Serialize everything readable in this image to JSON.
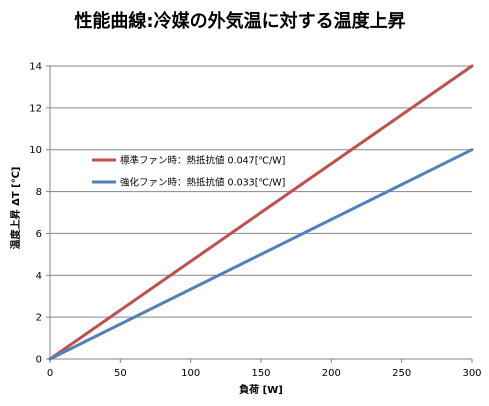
{
  "chart_data": {
    "type": "line",
    "title": "性能曲線:冷媒の外気温に対する温度上昇",
    "xlabel": "負荷 [W]",
    "ylabel": "温度上昇 ΔT [℃]",
    "xlim": [
      0,
      300
    ],
    "ylim": [
      0,
      14
    ],
    "x_ticks": [
      0,
      50,
      100,
      150,
      200,
      250,
      300
    ],
    "y_ticks": [
      0,
      2,
      4,
      6,
      8,
      10,
      12,
      14
    ],
    "grid": "horizontal",
    "legend_position": "upper-left-inside",
    "x": [
      0,
      300
    ],
    "series": [
      {
        "name": "標準ファン時：熱抵抗値 0.047[℃/W]",
        "values": [
          0,
          14
        ],
        "color": "#c0504d"
      },
      {
        "name": "強化ファン時：熱抵抗値 0.033[℃/W]",
        "values": [
          0,
          10
        ],
        "color": "#4f81bd"
      }
    ]
  }
}
